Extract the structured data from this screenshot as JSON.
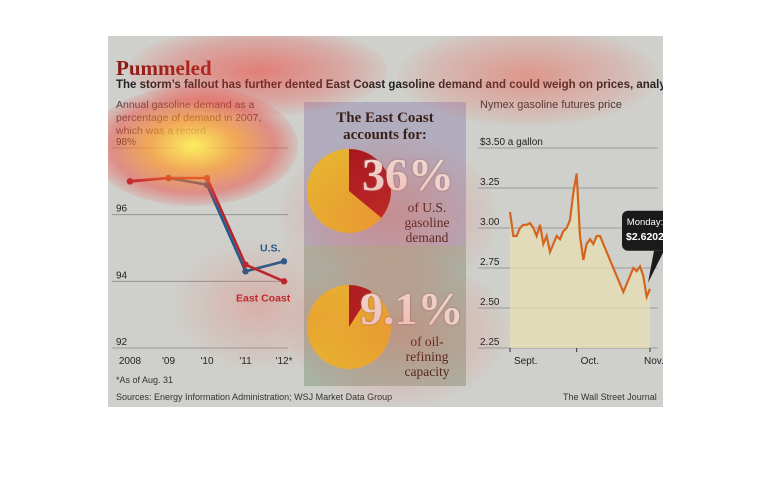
{
  "header": {
    "title": "Pummeled",
    "subtitle": "The storm’s fallout has further dented East Coast gasoline demand and could weigh on prices, analysts say."
  },
  "colors": {
    "us": "#1f5a8c",
    "east_coast": "#b3212a",
    "nymex": "#d4651f",
    "pie_yellow": "#e6b92e",
    "pie_red": "#a3141c"
  },
  "chart_data": [
    {
      "type": "line",
      "title": "Annual gasoline demand as a percentage of demand in 2007, which was a record",
      "x": [
        "2008",
        "'09",
        "'10",
        "'11",
        "'12*"
      ],
      "series": [
        {
          "name": "U.S.",
          "values": [
            97.0,
            97.1,
            96.9,
            94.3,
            94.6
          ]
        },
        {
          "name": "East Coast",
          "values": [
            97.0,
            97.1,
            97.1,
            94.5,
            94.0
          ]
        }
      ],
      "yticks": [
        "98%",
        "96",
        "94",
        "92"
      ],
      "ylim": [
        92,
        98
      ],
      "footnote": "*As of Aug. 31"
    },
    {
      "type": "pie",
      "title": "The East Coast accounts for:",
      "pies": [
        {
          "value": 36,
          "label": "36%",
          "description": "of U.S. gasoline demand"
        },
        {
          "value": 9.1,
          "label": "9.1%",
          "description": "of oil-refining capacity"
        }
      ]
    },
    {
      "type": "area",
      "title": "Nymex gasoline futures price",
      "yticks": [
        "$3.50 a gallon",
        "3.25",
        "3.00",
        "2.75",
        "2.50",
        "2.25"
      ],
      "ylim": [
        2.25,
        3.5
      ],
      "xticks": [
        "Sept.",
        "Oct.",
        "Nov."
      ],
      "values": [
        3.1,
        2.95,
        2.95,
        3.0,
        3.02,
        3.02,
        3.03,
        3.0,
        2.95,
        3.02,
        2.9,
        2.95,
        2.85,
        2.9,
        2.95,
        2.93,
        2.98,
        3.0,
        3.05,
        3.22,
        3.34,
        2.95,
        2.8,
        2.9,
        2.93,
        2.9,
        2.95,
        2.95,
        2.9,
        2.85,
        2.8,
        2.75,
        2.7,
        2.65,
        2.6,
        2.65,
        2.7,
        2.75,
        2.73,
        2.76,
        2.7,
        2.57,
        2.62
      ],
      "annotation": {
        "label": "Monday:",
        "value": "$2.6202"
      }
    }
  ],
  "footer": {
    "sources": "Sources: Energy Information Administration; WSJ Market Data Group",
    "credit": "The Wall Street Journal"
  }
}
